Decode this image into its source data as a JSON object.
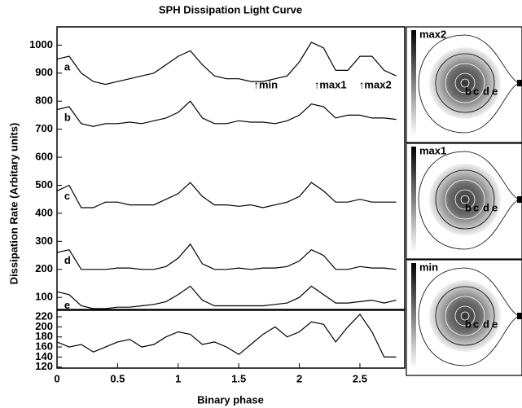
{
  "chart_data": [
    {
      "type": "line",
      "title": "SPH Dissipation Light Curve",
      "ylabel": "Dissipation Rate (Arbitary units)",
      "x": [
        0,
        0.1,
        0.2,
        0.3,
        0.4,
        0.5,
        0.6,
        0.7,
        0.8,
        0.9,
        1.0,
        1.1,
        1.2,
        1.3,
        1.4,
        1.5,
        1.6,
        1.7,
        1.8,
        1.9,
        2.0,
        2.1,
        2.2,
        2.3,
        2.4,
        2.5,
        2.6,
        2.7,
        2.8
      ],
      "series": [
        {
          "name": "a",
          "color": "#000000",
          "values": [
            950,
            960,
            900,
            870,
            860,
            870,
            880,
            890,
            900,
            930,
            960,
            980,
            930,
            890,
            880,
            880,
            870,
            870,
            880,
            890,
            940,
            1010,
            990,
            910,
            910,
            960,
            960,
            910,
            890
          ]
        },
        {
          "name": "b",
          "color": "#000000",
          "values": [
            770,
            780,
            720,
            710,
            720,
            720,
            725,
            720,
            730,
            740,
            760,
            800,
            740,
            720,
            720,
            730,
            725,
            725,
            720,
            730,
            750,
            790,
            780,
            740,
            750,
            750,
            740,
            740,
            735
          ]
        },
        {
          "name": "c",
          "color": "#000000",
          "values": [
            480,
            500,
            420,
            420,
            440,
            440,
            430,
            430,
            430,
            450,
            470,
            510,
            460,
            430,
            430,
            425,
            430,
            420,
            430,
            440,
            460,
            510,
            480,
            440,
            440,
            450,
            440,
            440,
            440
          ]
        },
        {
          "name": "d",
          "color": "#000000",
          "values": [
            260,
            270,
            200,
            200,
            200,
            205,
            205,
            200,
            200,
            210,
            240,
            290,
            220,
            200,
            200,
            205,
            200,
            205,
            205,
            210,
            230,
            270,
            250,
            200,
            200,
            210,
            205,
            205,
            200
          ]
        },
        {
          "name": "e",
          "color": "#000000",
          "values": [
            120,
            110,
            70,
            60,
            60,
            65,
            65,
            70,
            75,
            85,
            110,
            140,
            90,
            70,
            70,
            70,
            70,
            70,
            75,
            80,
            100,
            140,
            110,
            80,
            80,
            85,
            90,
            80,
            90
          ]
        }
      ],
      "annotations": [
        {
          "text": "↑min",
          "x": 1.65
        },
        {
          "text": "↑max1",
          "x": 2.15
        },
        {
          "text": "↑max2",
          "x": 2.52
        }
      ],
      "xlim": [
        0,
        2.87
      ],
      "ylim": [
        57,
        1065
      ],
      "yticks": [
        100,
        200,
        300,
        400,
        500,
        600,
        700,
        800,
        900,
        1000
      ]
    },
    {
      "type": "line",
      "xlabel": "Binary phase",
      "x": [
        0,
        0.1,
        0.2,
        0.3,
        0.4,
        0.5,
        0.6,
        0.7,
        0.8,
        0.9,
        1.0,
        1.1,
        1.2,
        1.3,
        1.4,
        1.5,
        1.6,
        1.7,
        1.8,
        1.9,
        2.0,
        2.1,
        2.2,
        2.3,
        2.4,
        2.5,
        2.6,
        2.7,
        2.8
      ],
      "series": [
        {
          "color": "#000000",
          "values": [
            170,
            160,
            165,
            150,
            160,
            170,
            175,
            160,
            165,
            180,
            190,
            185,
            165,
            170,
            160,
            145,
            165,
            185,
            200,
            180,
            190,
            210,
            205,
            170,
            200,
            225,
            190,
            140,
            140
          ]
        }
      ],
      "xlim": [
        0,
        2.87
      ],
      "ylim": [
        118,
        233
      ],
      "yticks": [
        120,
        140,
        160,
        180,
        200,
        220
      ],
      "xticks": [
        0,
        0.5,
        1,
        1.5,
        2,
        2.5
      ]
    }
  ],
  "insets": [
    {
      "label": "max2",
      "letters": [
        "b",
        "c",
        "d",
        "e"
      ]
    },
    {
      "label": "max1",
      "letters": [
        "b",
        "c",
        "d",
        "e"
      ]
    },
    {
      "label": "min",
      "letters": [
        "b",
        "c",
        "d",
        "e"
      ]
    }
  ]
}
